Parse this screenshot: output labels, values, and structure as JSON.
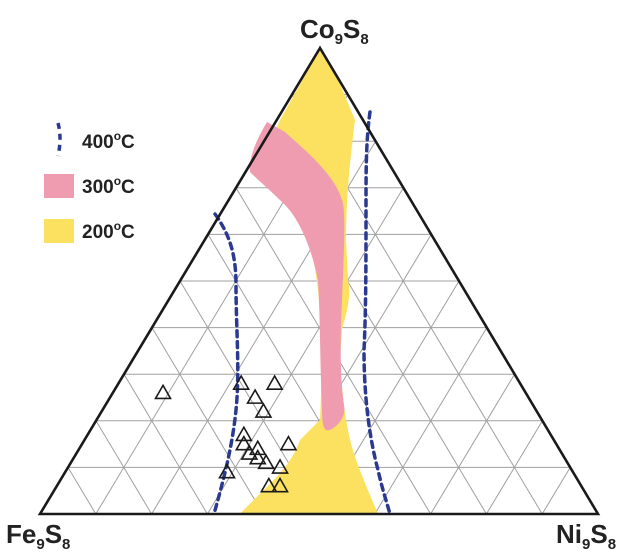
{
  "vertices": {
    "top": {
      "base": "Co",
      "sub1": "9",
      "mid": "S",
      "sub2": "8"
    },
    "left": {
      "base": "Fe",
      "sub1": "9",
      "mid": "S",
      "sub2": "8"
    },
    "right": {
      "base": "Ni",
      "sub1": "9",
      "mid": "S",
      "sub2": "8"
    }
  },
  "legend": [
    {
      "key": "400",
      "unit": "C",
      "sup": "o",
      "style": "dashed-line",
      "color": "#2b3a8f"
    },
    {
      "key": "300",
      "unit": "C",
      "sup": "o",
      "style": "fill",
      "color": "#ef9cb0"
    },
    {
      "key": "200",
      "unit": "C",
      "sup": "o",
      "style": "fill",
      "color": "#fbe15f"
    }
  ],
  "colors": {
    "frame": "#1a1a1a",
    "grid": "#a0a0a0",
    "field_300C": "#ef9cb0",
    "field_200C": "#fbe15f",
    "boundary_400C": "#2b3a8f",
    "marker": "#1a1a1a"
  },
  "grid_divisions": 10,
  "chart_data": {
    "type": "scatter",
    "plot": "ternary",
    "components": [
      "Co9S8",
      "Fe9S8",
      "Ni9S8"
    ],
    "marker": "open-triangle",
    "points": [
      {
        "Co": 0.26,
        "Fe": 0.65,
        "Ni": 0.09
      },
      {
        "Co": 0.28,
        "Fe": 0.5,
        "Ni": 0.22
      },
      {
        "Co": 0.25,
        "Fe": 0.49,
        "Ni": 0.26
      },
      {
        "Co": 0.28,
        "Fe": 0.44,
        "Ni": 0.28
      },
      {
        "Co": 0.22,
        "Fe": 0.49,
        "Ni": 0.29
      },
      {
        "Co": 0.17,
        "Fe": 0.55,
        "Ni": 0.28
      },
      {
        "Co": 0.15,
        "Fe": 0.56,
        "Ni": 0.29
      },
      {
        "Co": 0.14,
        "Fe": 0.54,
        "Ni": 0.32
      },
      {
        "Co": 0.13,
        "Fe": 0.56,
        "Ni": 0.31
      },
      {
        "Co": 0.12,
        "Fe": 0.55,
        "Ni": 0.33
      },
      {
        "Co": 0.15,
        "Fe": 0.48,
        "Ni": 0.37
      },
      {
        "Co": 0.11,
        "Fe": 0.54,
        "Ni": 0.35
      },
      {
        "Co": 0.1,
        "Fe": 0.52,
        "Ni": 0.38
      },
      {
        "Co": 0.09,
        "Fe": 0.62,
        "Ni": 0.29
      },
      {
        "Co": 0.06,
        "Fe": 0.56,
        "Ni": 0.38
      },
      {
        "Co": 0.06,
        "Fe": 0.54,
        "Ni": 0.4
      }
    ]
  }
}
